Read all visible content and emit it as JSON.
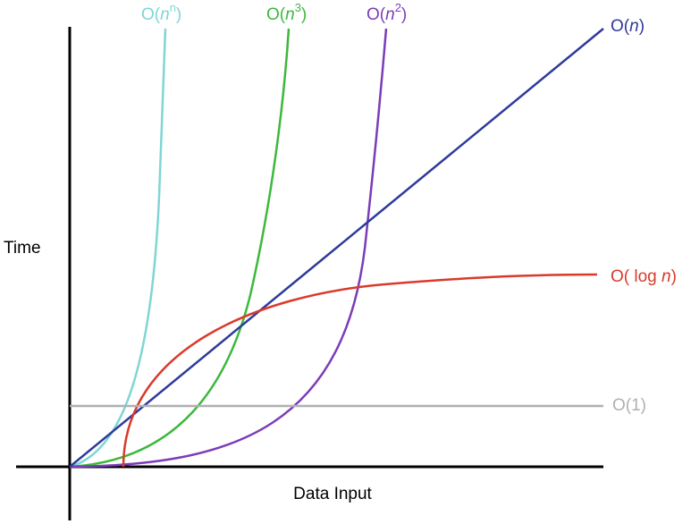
{
  "axes": {
    "y_label": "Time",
    "x_label": "Data Input"
  },
  "curves": [
    {
      "label": {
        "pre": "O(",
        "var": "n",
        "sup": "n",
        "post": ")"
      },
      "color": "#7fd6d4"
    },
    {
      "label": {
        "pre": "O(",
        "var": "n",
        "sup": "3",
        "post": ")"
      },
      "color": "#3cb83c"
    },
    {
      "label": {
        "pre": "O(",
        "var": "n",
        "sup": "2",
        "post": ")"
      },
      "color": "#7b3cb8"
    },
    {
      "label": {
        "pre": "O(",
        "var": "n",
        "post": ")"
      },
      "color": "#2e3a9a"
    },
    {
      "label": {
        "pre": "O( log ",
        "var": "n",
        "post": ")"
      },
      "color": "#d93a2b"
    },
    {
      "label": {
        "pre": "O(1)"
      },
      "color": "#b0b0b0"
    }
  ]
}
